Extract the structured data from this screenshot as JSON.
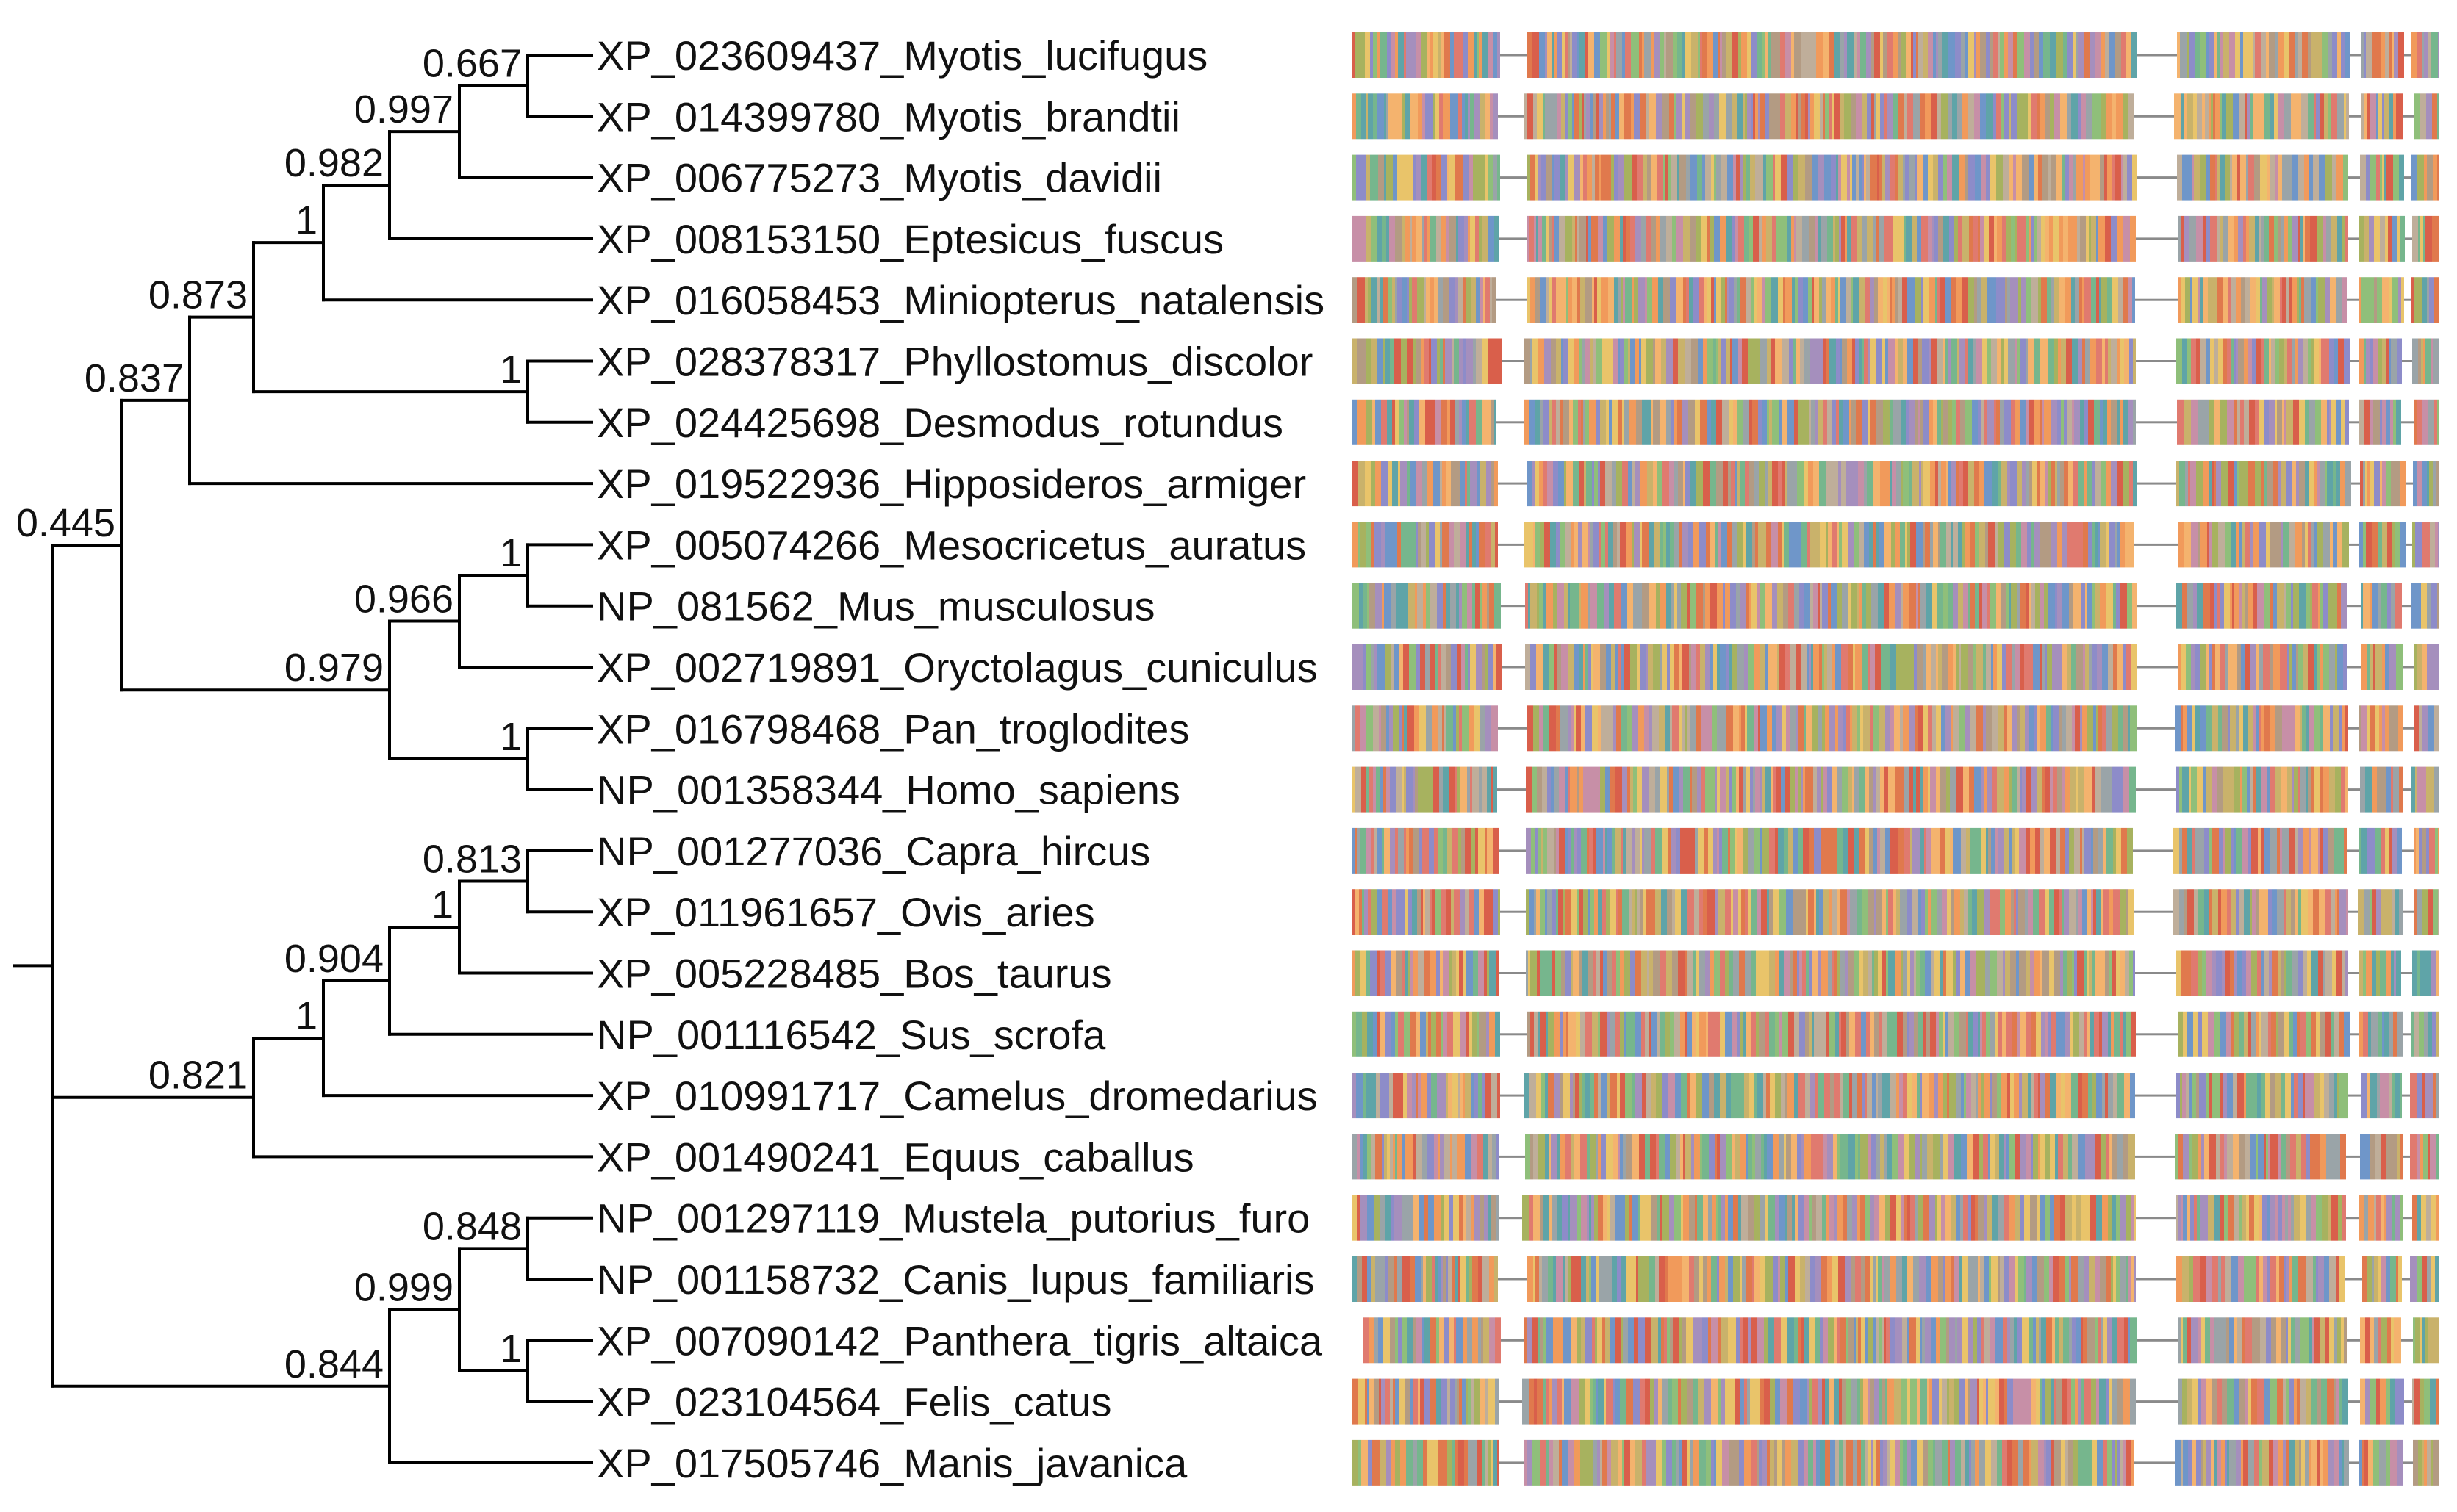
{
  "figure": {
    "taxa": [
      "XP_023609437_Myotis_lucifugus",
      "XP_014399780_Myotis_brandtii",
      "XP_006775273_Myotis_davidii",
      "XP_008153150_Eptesicus_fuscus",
      "XP_016058453_Miniopterus_natalensis",
      "XP_028378317_Phyllostomus_discolor",
      "XP_024425698_Desmodus_rotundus",
      "XP_019522936_Hipposideros_armiger",
      "XP_005074266_Mesocricetus_auratus",
      "NP_081562_Mus_musculosus",
      "XP_002719891_Oryctolagus_cuniculus",
      "XP_016798468_Pan_troglodites",
      "NP_001358344_Homo_sapiens",
      "NP_001277036_Capra_hircus",
      "XP_011961657_Ovis_aries",
      "XP_005228485_Bos_taurus",
      "NP_001116542_Sus_scrofa",
      "XP_010991717_Camelus_dromedarius",
      "XP_001490241_Equus_caballus",
      "NP_001297119_Mustela_putorius_furo",
      "NP_001158732_Canis_lupus_familiaris",
      "XP_007090142_Panthera_tigris_altaica",
      "XP_023104564_Felis_catus",
      "XP_017505746_Manis_javanica"
    ],
    "nodes": [
      {
        "id": "n1",
        "children": [
          "t0",
          "t1"
        ],
        "support": "0.667"
      },
      {
        "id": "n2",
        "children": [
          "n1",
          "t2"
        ],
        "support": "0.997"
      },
      {
        "id": "n3",
        "children": [
          "n2",
          "t3"
        ],
        "support": "0.982"
      },
      {
        "id": "n4",
        "children": [
          "n3",
          "t4"
        ],
        "support": "1"
      },
      {
        "id": "n5",
        "children": [
          "t5",
          "t6"
        ],
        "support": "1"
      },
      {
        "id": "n6",
        "children": [
          "n4",
          "n5"
        ],
        "support": "0.873"
      },
      {
        "id": "n7",
        "children": [
          "n6",
          "t7"
        ],
        "support": "0.837"
      },
      {
        "id": "n8",
        "children": [
          "t8",
          "t9"
        ],
        "support": "1"
      },
      {
        "id": "n9",
        "children": [
          "n8",
          "t10"
        ],
        "support": "0.966"
      },
      {
        "id": "n10",
        "children": [
          "t11",
          "t12"
        ],
        "support": "1"
      },
      {
        "id": "n11",
        "children": [
          "n9",
          "n10"
        ],
        "support": "0.979"
      },
      {
        "id": "n12",
        "children": [
          "n7",
          "n11"
        ],
        "support": "0.445"
      },
      {
        "id": "n13",
        "children": [
          "t13",
          "t14"
        ],
        "support": "0.813"
      },
      {
        "id": "n14",
        "children": [
          "n13",
          "t15"
        ],
        "support": "1"
      },
      {
        "id": "n15",
        "children": [
          "n14",
          "t16"
        ],
        "support": "0.904"
      },
      {
        "id": "n16",
        "children": [
          "n15",
          "t17"
        ],
        "support": "1"
      },
      {
        "id": "n17",
        "children": [
          "n16",
          "t18"
        ],
        "support": "0.821"
      },
      {
        "id": "n18",
        "children": [
          "t19",
          "t20"
        ],
        "support": "0.848"
      },
      {
        "id": "n19",
        "children": [
          "t21",
          "t22"
        ],
        "support": "1"
      },
      {
        "id": "n20",
        "children": [
          "n18",
          "n19"
        ],
        "support": "0.999"
      },
      {
        "id": "n21",
        "children": [
          "n20",
          "t23"
        ],
        "support": "0.844"
      },
      {
        "id": "n22",
        "children": [
          "n12",
          "n17",
          "n21"
        ],
        "support": ""
      }
    ],
    "root": "n22",
    "alignment": {
      "palette": [
        "#e0794d",
        "#f19a5b",
        "#f4b36e",
        "#e9c46a",
        "#c9b26b",
        "#a7b25f",
        "#8fbf7a",
        "#76b68d",
        "#5fa4a8",
        "#6f96c9",
        "#8d8cc9",
        "#a58fbd",
        "#c78fa7",
        "#e07a6f",
        "#d95f4b",
        "#bfae9a",
        "#9aa4a8",
        "#b39b83"
      ],
      "gap_color": "#8a8a8a"
    }
  }
}
